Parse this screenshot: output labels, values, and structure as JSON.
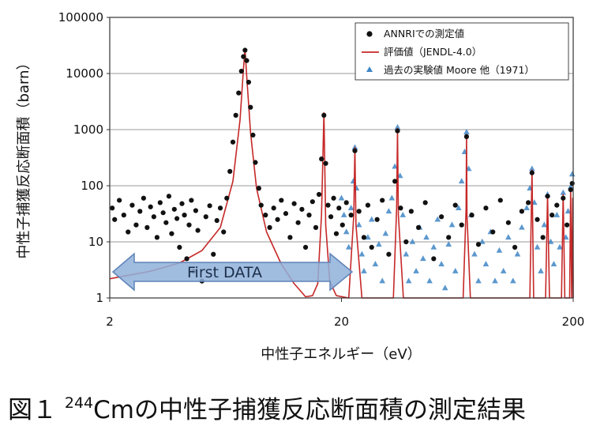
{
  "chart_data": {
    "type": "scatter",
    "title": "",
    "xlabel": "中性子エネルギー（eV）",
    "ylabel": "中性子捕獲反応断面積（barn）",
    "xscale": "log",
    "yscale": "log",
    "xlim": [
      2,
      200
    ],
    "ylim": [
      1,
      100000
    ],
    "x_ticks": [
      "2",
      "20",
      "200"
    ],
    "y_ticks": [
      "1",
      "10",
      "100",
      "1000",
      "10000",
      "100000"
    ],
    "grid": "horizontal",
    "legend_position": "top-right",
    "legend": [
      {
        "label": "ANNRIでの測定値",
        "marker": "circle",
        "color": "#111111"
      },
      {
        "label": "評価値（JENDL-4.0）",
        "marker": "line",
        "color": "#c62828"
      },
      {
        "label": "過去の実験値 Moore 他（1971）",
        "marker": "triangle",
        "color": "#3f86c6"
      }
    ],
    "resonance_peaks": [
      {
        "x": 7.67,
        "y": 27000
      },
      {
        "x": 16.8,
        "y": 2000
      },
      {
        "x": 22.85,
        "y": 480
      },
      {
        "x": 34.9,
        "y": 1050
      },
      {
        "x": 69.3,
        "y": 820
      },
      {
        "x": 132.8,
        "y": 190
      },
      {
        "x": 155,
        "y": 70
      },
      {
        "x": 181,
        "y": 70
      },
      {
        "x": 195,
        "y": 90
      }
    ],
    "series": [
      {
        "name": "ANNRIでの測定値",
        "marker": "circle",
        "color": "#111111",
        "points": [
          [
            2.05,
            40
          ],
          [
            2.1,
            25
          ],
          [
            2.2,
            55
          ],
          [
            2.3,
            30
          ],
          [
            2.4,
            15
          ],
          [
            2.5,
            45
          ],
          [
            2.6,
            20
          ],
          [
            2.7,
            35
          ],
          [
            2.8,
            60
          ],
          [
            2.9,
            18
          ],
          [
            3.0,
            42
          ],
          [
            3.1,
            28
          ],
          [
            3.2,
            12
          ],
          [
            3.3,
            50
          ],
          [
            3.4,
            33
          ],
          [
            3.5,
            22
          ],
          [
            3.6,
            65
          ],
          [
            3.7,
            14
          ],
          [
            3.8,
            38
          ],
          [
            3.9,
            26
          ],
          [
            4.0,
            8
          ],
          [
            4.1,
            48
          ],
          [
            4.2,
            30
          ],
          [
            4.3,
            5
          ],
          [
            4.4,
            20
          ],
          [
            4.5,
            55
          ],
          [
            4.6,
            3
          ],
          [
            4.7,
            36
          ],
          [
            4.8,
            16
          ],
          [
            5.0,
            2
          ],
          [
            5.2,
            28
          ],
          [
            5.4,
            44
          ],
          [
            5.6,
            6
          ],
          [
            5.8,
            24
          ],
          [
            6.0,
            40
          ],
          [
            6.2,
            15
          ],
          [
            6.4,
            60
          ],
          [
            6.6,
            180
          ],
          [
            6.8,
            600
          ],
          [
            7.0,
            1800
          ],
          [
            7.2,
            4500
          ],
          [
            7.4,
            11000
          ],
          [
            7.55,
            20000
          ],
          [
            7.67,
            26000
          ],
          [
            7.8,
            17000
          ],
          [
            7.95,
            7000
          ],
          [
            8.1,
            2500
          ],
          [
            8.3,
            800
          ],
          [
            8.5,
            260
          ],
          [
            8.8,
            90
          ],
          [
            9.0,
            45
          ],
          [
            9.4,
            30
          ],
          [
            9.8,
            18
          ],
          [
            10.2,
            40
          ],
          [
            10.6,
            25
          ],
          [
            11.0,
            55
          ],
          [
            11.5,
            32
          ],
          [
            12.0,
            12
          ],
          [
            12.5,
            48
          ],
          [
            13.0,
            22
          ],
          [
            13.5,
            38
          ],
          [
            14.0,
            8
          ],
          [
            14.5,
            30
          ],
          [
            15.0,
            52
          ],
          [
            15.5,
            18
          ],
          [
            16.0,
            70
          ],
          [
            16.4,
            300
          ],
          [
            16.8,
            1800
          ],
          [
            17.1,
            250
          ],
          [
            17.5,
            45
          ],
          [
            18.0,
            28
          ],
          [
            18.5,
            60
          ],
          [
            19.0,
            14
          ],
          [
            19.5,
            40
          ],
          [
            20.2,
            20
          ],
          [
            21.0,
            50
          ],
          [
            22.0,
            30
          ],
          [
            22.85,
            420
          ],
          [
            23.8,
            35
          ],
          [
            25.0,
            12
          ],
          [
            26.0,
            45
          ],
          [
            27.0,
            8
          ],
          [
            28.5,
            25
          ],
          [
            30.0,
            55
          ],
          [
            32.0,
            6
          ],
          [
            34.0,
            120
          ],
          [
            34.9,
            950
          ],
          [
            36.0,
            40
          ],
          [
            38.0,
            10
          ],
          [
            40.0,
            35
          ],
          [
            43.0,
            18
          ],
          [
            46.0,
            50
          ],
          [
            50.0,
            5
          ],
          [
            54.0,
            28
          ],
          [
            58.0,
            12
          ],
          [
            62.0,
            45
          ],
          [
            66.0,
            20
          ],
          [
            69.3,
            750
          ],
          [
            73.0,
            30
          ],
          [
            78.0,
            9
          ],
          [
            84.0,
            40
          ],
          [
            90.0,
            15
          ],
          [
            97.0,
            55
          ],
          [
            105.0,
            22
          ],
          [
            112.0,
            8
          ],
          [
            120.0,
            35
          ],
          [
            128.0,
            50
          ],
          [
            132.8,
            170
          ],
          [
            140.0,
            25
          ],
          [
            148.0,
            12
          ],
          [
            155.0,
            65
          ],
          [
            162.0,
            30
          ],
          [
            170.0,
            45
          ],
          [
            181.0,
            60
          ],
          [
            188.0,
            20
          ],
          [
            195.0,
            85
          ],
          [
            198.0,
            110
          ]
        ]
      },
      {
        "name": "評価値（JENDL-4.0）",
        "marker": "line",
        "color": "#c62828",
        "points": [
          [
            2.0,
            2.2
          ],
          [
            3.0,
            3.0
          ],
          [
            4.0,
            4.2
          ],
          [
            5.0,
            7.0
          ],
          [
            6.0,
            18
          ],
          [
            6.8,
            120
          ],
          [
            7.3,
            1500
          ],
          [
            7.55,
            12000
          ],
          [
            7.67,
            27000
          ],
          [
            7.8,
            9000
          ],
          [
            8.1,
            900
          ],
          [
            8.6,
            90
          ],
          [
            9.5,
            15
          ],
          [
            11.0,
            4.0
          ],
          [
            12.5,
            1.8
          ],
          [
            14.0,
            1.05
          ],
          [
            15.0,
            1.1
          ],
          [
            15.8,
            1.8
          ],
          [
            16.4,
            30
          ],
          [
            16.8,
            2000
          ],
          [
            17.1,
            20
          ],
          [
            17.8,
            2.0
          ],
          [
            19.0,
            1.1
          ],
          [
            21.5,
            1.0
          ],
          [
            22.6,
            30
          ],
          [
            22.85,
            480
          ],
          [
            23.1,
            20
          ],
          [
            24.5,
            1.0
          ],
          [
            33.5,
            1.0
          ],
          [
            34.6,
            40
          ],
          [
            34.9,
            1050
          ],
          [
            35.2,
            30
          ],
          [
            37.0,
            1.0
          ],
          [
            67.0,
            1.0
          ],
          [
            69.0,
            40
          ],
          [
            69.3,
            820
          ],
          [
            69.6,
            30
          ],
          [
            72.0,
            1.0
          ],
          [
            130.0,
            1.0
          ],
          [
            132.8,
            190
          ],
          [
            135.0,
            1.0
          ],
          [
            152.0,
            1.0
          ],
          [
            155.0,
            70
          ],
          [
            158.0,
            1.0
          ],
          [
            178.0,
            1.0
          ],
          [
            181.0,
            70
          ],
          [
            184.0,
            1.0
          ],
          [
            193.0,
            1.0
          ],
          [
            195.0,
            90
          ],
          [
            197.0,
            1.0
          ],
          [
            199.0,
            60
          ],
          [
            200.0,
            1.0
          ]
        ]
      },
      {
        "name": "過去の実験値 Moore 他（1971）",
        "marker": "triangle",
        "color": "#3f86c6",
        "points": [
          [
            20.0,
            60
          ],
          [
            20.5,
            30
          ],
          [
            21.0,
            15
          ],
          [
            21.5,
            8
          ],
          [
            22.0,
            40
          ],
          [
            22.5,
            120
          ],
          [
            22.85,
            480
          ],
          [
            23.2,
            90
          ],
          [
            23.8,
            20
          ],
          [
            24.5,
            6
          ],
          [
            25.0,
            3
          ],
          [
            26.0,
            12
          ],
          [
            27.0,
            25
          ],
          [
            28.0,
            4
          ],
          [
            29.0,
            9
          ],
          [
            30.0,
            2
          ],
          [
            31.0,
            14
          ],
          [
            32.0,
            35
          ],
          [
            33.0,
            60
          ],
          [
            34.0,
            220
          ],
          [
            34.9,
            1100
          ],
          [
            35.8,
            150
          ],
          [
            36.8,
            30
          ],
          [
            38.0,
            6
          ],
          [
            39.0,
            2
          ],
          [
            40.5,
            10
          ],
          [
            42.0,
            3
          ],
          [
            43.5,
            18
          ],
          [
            45.0,
            5
          ],
          [
            46.5,
            12
          ],
          [
            48.0,
            2
          ],
          [
            50.0,
            8
          ],
          [
            52.0,
            25
          ],
          [
            54.0,
            4
          ],
          [
            56.0,
            1.5
          ],
          [
            58.0,
            9
          ],
          [
            60.0,
            20
          ],
          [
            62.0,
            3
          ],
          [
            64.0,
            40
          ],
          [
            66.0,
            120
          ],
          [
            68.0,
            400
          ],
          [
            69.3,
            900
          ],
          [
            70.8,
            200
          ],
          [
            72.5,
            30
          ],
          [
            75.0,
            6
          ],
          [
            78.0,
            2
          ],
          [
            81.0,
            10
          ],
          [
            84.0,
            4
          ],
          [
            88.0,
            15
          ],
          [
            92.0,
            2
          ],
          [
            96.0,
            7
          ],
          [
            100.0,
            3
          ],
          [
            105.0,
            12
          ],
          [
            110.0,
            2
          ],
          [
            115.0,
            6
          ],
          [
            120.0,
            18
          ],
          [
            126.0,
            40
          ],
          [
            130.0,
            90
          ],
          [
            132.8,
            200
          ],
          [
            136.0,
            50
          ],
          [
            140.0,
            8
          ],
          [
            145.0,
            3
          ],
          [
            150.0,
            20
          ],
          [
            155.0,
            70
          ],
          [
            160.0,
            10
          ],
          [
            165.0,
            4
          ],
          [
            170.0,
            30
          ],
          [
            175.0,
            8
          ],
          [
            181.0,
            75
          ],
          [
            186.0,
            12
          ],
          [
            190.0,
            35
          ],
          [
            195.0,
            95
          ],
          [
            198.0,
            160
          ]
        ]
      }
    ],
    "annotation": {
      "text": "First DATA",
      "type": "double-arrow",
      "x_range": [
        2,
        21
      ]
    }
  },
  "caption": {
    "prefix": "図１",
    "isotope_mass": "244",
    "text": "Cmの中性子捕獲反応断面積の測定結果"
  }
}
